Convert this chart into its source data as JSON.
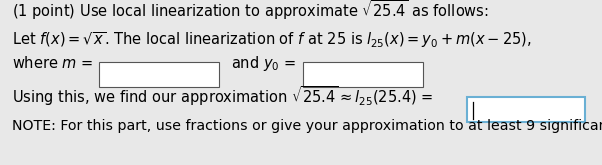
{
  "bg_color": "#e8e8e8",
  "text_color": "#000000",
  "box_fill": "#ffffff",
  "box_border": "#555555",
  "active_box_border": "#6ab0d4",
  "active_box_fill": "#ffffff",
  "fontsize": 10.5
}
